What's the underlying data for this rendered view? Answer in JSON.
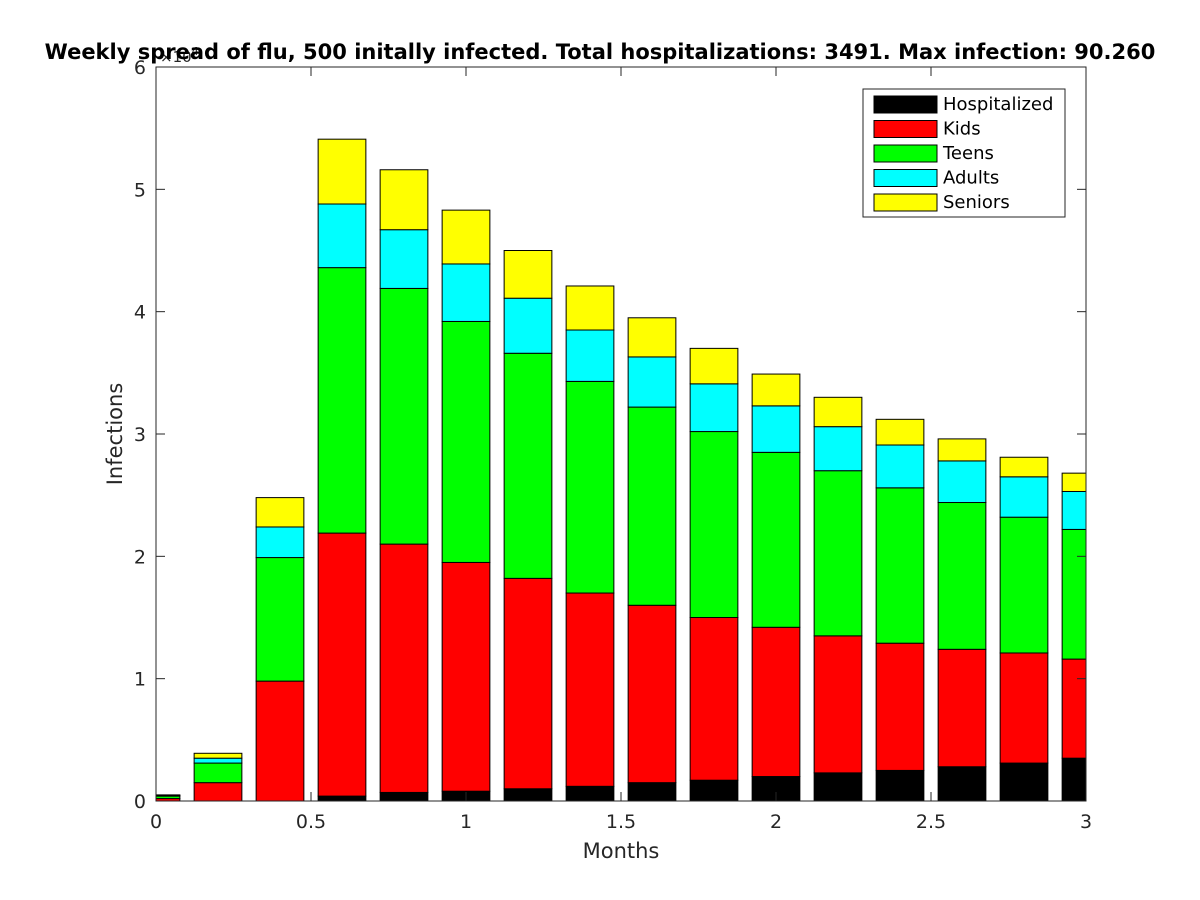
{
  "chart_data": {
    "type": "bar",
    "stacked": true,
    "title": "Weekly spread of flu, 500 initally infected. Total hospitalizations: 3491. Max infection: 90.260",
    "xlabel": "Months",
    "ylabel": "Infections",
    "y_multiplier_label": "×10",
    "y_multiplier_exponent": "4",
    "xlim": [
      0,
      3
    ],
    "ylim": [
      0,
      6
    ],
    "x_ticks": [
      0,
      0.5,
      1,
      1.5,
      2,
      2.5,
      3
    ],
    "x_tick_labels": [
      "0",
      "0.5",
      "1",
      "1.5",
      "2",
      "2.5",
      "3"
    ],
    "y_ticks": [
      0,
      1,
      2,
      3,
      4,
      5,
      6
    ],
    "y_tick_labels": [
      "0",
      "1",
      "2",
      "3",
      "4",
      "5",
      "6"
    ],
    "bar_width": 0.154,
    "x": [
      0,
      0.2,
      0.4,
      0.6,
      0.8,
      1.0,
      1.2,
      1.4,
      1.6,
      1.8,
      2.0,
      2.2,
      2.4,
      2.6,
      2.8,
      3.0
    ],
    "legend_position": "top-right",
    "grid": false,
    "series": [
      {
        "name": "Hospitalized",
        "color": "#000000",
        "values": [
          0.0,
          0.0,
          0.0,
          0.04,
          0.07,
          0.08,
          0.1,
          0.12,
          0.15,
          0.17,
          0.2,
          0.23,
          0.25,
          0.28,
          0.31,
          0.35
        ]
      },
      {
        "name": "Kids",
        "color": "#ff0000",
        "values": [
          0.02,
          0.15,
          0.98,
          2.15,
          2.03,
          1.87,
          1.72,
          1.58,
          1.45,
          1.33,
          1.22,
          1.12,
          1.04,
          0.96,
          0.9,
          0.81
        ]
      },
      {
        "name": "Teens",
        "color": "#00ff00",
        "values": [
          0.02,
          0.16,
          1.01,
          2.17,
          2.09,
          1.97,
          1.84,
          1.73,
          1.62,
          1.52,
          1.43,
          1.35,
          1.27,
          1.2,
          1.11,
          1.06
        ]
      },
      {
        "name": "Adults",
        "color": "#00ffff",
        "values": [
          0.005,
          0.04,
          0.25,
          0.52,
          0.48,
          0.47,
          0.45,
          0.42,
          0.41,
          0.39,
          0.38,
          0.36,
          0.35,
          0.34,
          0.33,
          0.31
        ]
      },
      {
        "name": "Seniors",
        "color": "#ffff00",
        "values": [
          0.005,
          0.04,
          0.24,
          0.53,
          0.49,
          0.44,
          0.39,
          0.36,
          0.32,
          0.29,
          0.26,
          0.24,
          0.21,
          0.18,
          0.16,
          0.15
        ]
      }
    ]
  }
}
